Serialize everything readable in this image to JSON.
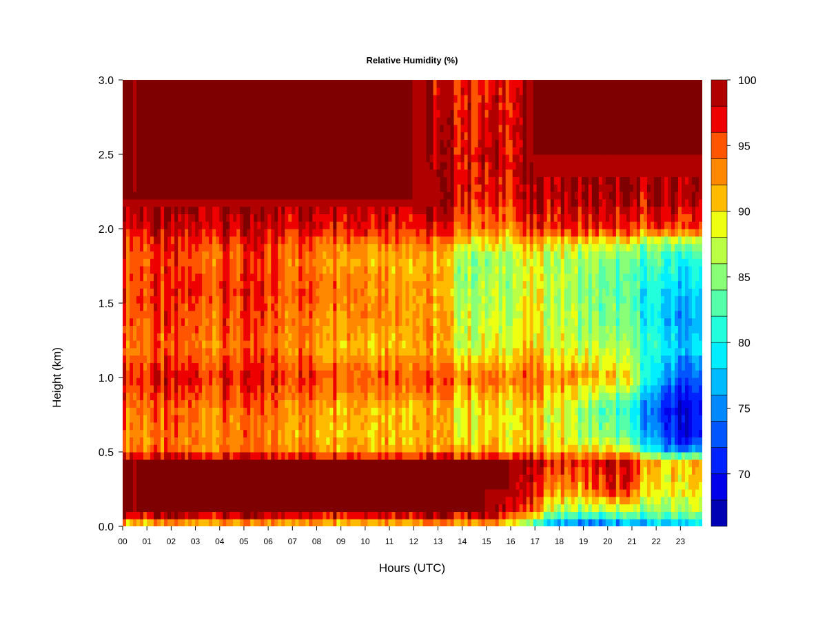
{
  "chart_data": {
    "type": "heatmap",
    "title": "Relative Humidity (%)",
    "xlabel": "Hours (UTC)",
    "ylabel": "Height (km)",
    "x_ticks": [
      "00",
      "01",
      "02",
      "03",
      "04",
      "05",
      "06",
      "07",
      "08",
      "09",
      "10",
      "11",
      "12",
      "13",
      "14",
      "15",
      "16",
      "17",
      "18",
      "19",
      "20",
      "21",
      "22",
      "23"
    ],
    "xlim": [
      0,
      23.9
    ],
    "y_ticks": [
      "0.0",
      "0.5",
      "1.0",
      "1.5",
      "2.0",
      "2.5",
      "3.0"
    ],
    "ylim": [
      0,
      3.0
    ],
    "colorbar": {
      "ticks": [
        "100",
        "95",
        "90",
        "85",
        "80",
        "75",
        "70"
      ],
      "range": [
        66,
        100
      ],
      "levels": [
        66,
        68,
        70,
        72,
        74,
        76,
        78,
        80,
        82,
        84,
        86,
        88,
        90,
        92,
        94,
        96,
        98,
        100
      ],
      "colors": [
        "#00007F",
        "#0000B5",
        "#0000EB",
        "#0022FF",
        "#0055FF",
        "#0088FF",
        "#00BBFF",
        "#00EEFF",
        "#22FFDD",
        "#55FFAA",
        "#88FF77",
        "#BBFF44",
        "#EEFF11",
        "#FFBB00",
        "#FF8800",
        "#FF5500",
        "#EE0000",
        "#B00000",
        "#7F0000"
      ]
    },
    "rh_profile": {
      "hours": [
        0,
        2,
        4,
        6,
        8,
        10,
        12,
        13,
        14,
        15,
        16,
        17,
        18,
        19,
        20,
        21,
        22,
        23,
        24
      ],
      "heights_km": [
        0.0,
        0.05,
        0.1,
        0.25,
        0.45,
        0.5,
        0.6,
        0.8,
        1.0,
        1.2,
        1.4,
        1.6,
        1.8,
        1.9,
        2.0,
        2.2,
        2.5,
        3.0
      ],
      "values": [
        [
          88,
          96,
          100,
          100,
          100,
          94,
          93,
          94,
          97,
          94,
          95,
          96,
          95,
          96,
          98,
          100,
          100,
          100
        ],
        [
          88,
          96,
          100,
          100,
          100,
          94,
          93,
          94,
          97,
          94,
          95,
          96,
          95,
          96,
          98,
          100,
          100,
          100
        ],
        [
          89,
          96,
          100,
          100,
          100,
          94,
          93,
          94,
          97,
          94,
          95,
          96,
          95,
          96,
          98,
          100,
          100,
          100
        ],
        [
          89,
          96,
          100,
          100,
          100,
          94,
          93,
          94,
          97,
          94,
          95,
          96,
          95,
          96,
          98,
          100,
          100,
          100
        ],
        [
          89,
          96,
          100,
          100,
          100,
          94,
          92,
          93,
          96,
          93,
          94,
          95,
          94,
          95,
          98,
          100,
          100,
          100
        ],
        [
          89,
          96,
          100,
          100,
          100,
          93,
          92,
          92,
          96,
          92,
          94,
          94,
          93,
          94,
          98,
          100,
          100,
          100
        ],
        [
          90,
          97,
          100,
          100,
          100,
          93,
          92,
          92,
          96,
          92,
          93,
          93,
          92,
          94,
          97,
          100,
          100,
          100
        ],
        [
          90,
          97,
          100,
          100,
          100,
          93,
          91,
          91,
          95,
          91,
          92,
          92,
          91,
          93,
          97,
          100,
          99,
          98
        ],
        [
          90,
          96,
          100,
          100,
          100,
          92,
          90,
          90,
          94,
          88,
          88,
          86,
          86,
          90,
          95,
          98,
          98,
          97
        ],
        [
          90,
          96,
          100,
          100,
          100,
          92,
          90,
          90,
          94,
          88,
          87,
          86,
          85,
          89,
          93,
          96,
          98,
          96
        ],
        [
          88,
          93,
          98,
          100,
          100,
          92,
          90,
          90,
          94,
          89,
          88,
          87,
          87,
          90,
          94,
          97,
          98,
          98
        ],
        [
          80,
          86,
          92,
          96,
          99,
          92,
          90,
          90,
          94,
          90,
          89,
          89,
          88,
          91,
          96,
          99,
          100,
          100
        ],
        [
          74,
          80,
          86,
          93,
          97,
          91,
          89,
          89,
          93,
          88,
          87,
          87,
          87,
          90,
          96,
          99,
          100,
          100
        ],
        [
          72,
          77,
          85,
          93,
          96,
          90,
          86,
          85,
          92,
          87,
          86,
          85,
          86,
          89,
          96,
          99,
          100,
          100
        ],
        [
          73,
          78,
          86,
          96,
          98,
          90,
          85,
          82,
          91,
          86,
          84,
          83,
          84,
          88,
          96,
          99,
          100,
          100
        ],
        [
          74,
          79,
          86,
          95,
          97,
          88,
          82,
          79,
          88,
          85,
          83,
          82,
          83,
          87,
          95,
          99,
          100,
          100
        ],
        [
          75,
          80,
          84,
          88,
          90,
          78,
          74,
          72,
          77,
          80,
          78,
          79,
          82,
          85,
          95,
          99,
          100,
          100
        ],
        [
          77,
          81,
          86,
          90,
          91,
          76,
          70,
          69,
          73,
          78,
          76,
          78,
          81,
          85,
          95,
          99,
          100,
          100
        ],
        [
          77,
          81,
          86,
          90,
          91,
          76,
          70,
          69,
          73,
          78,
          76,
          78,
          81,
          85,
          95,
          99,
          100,
          100
        ]
      ]
    }
  }
}
